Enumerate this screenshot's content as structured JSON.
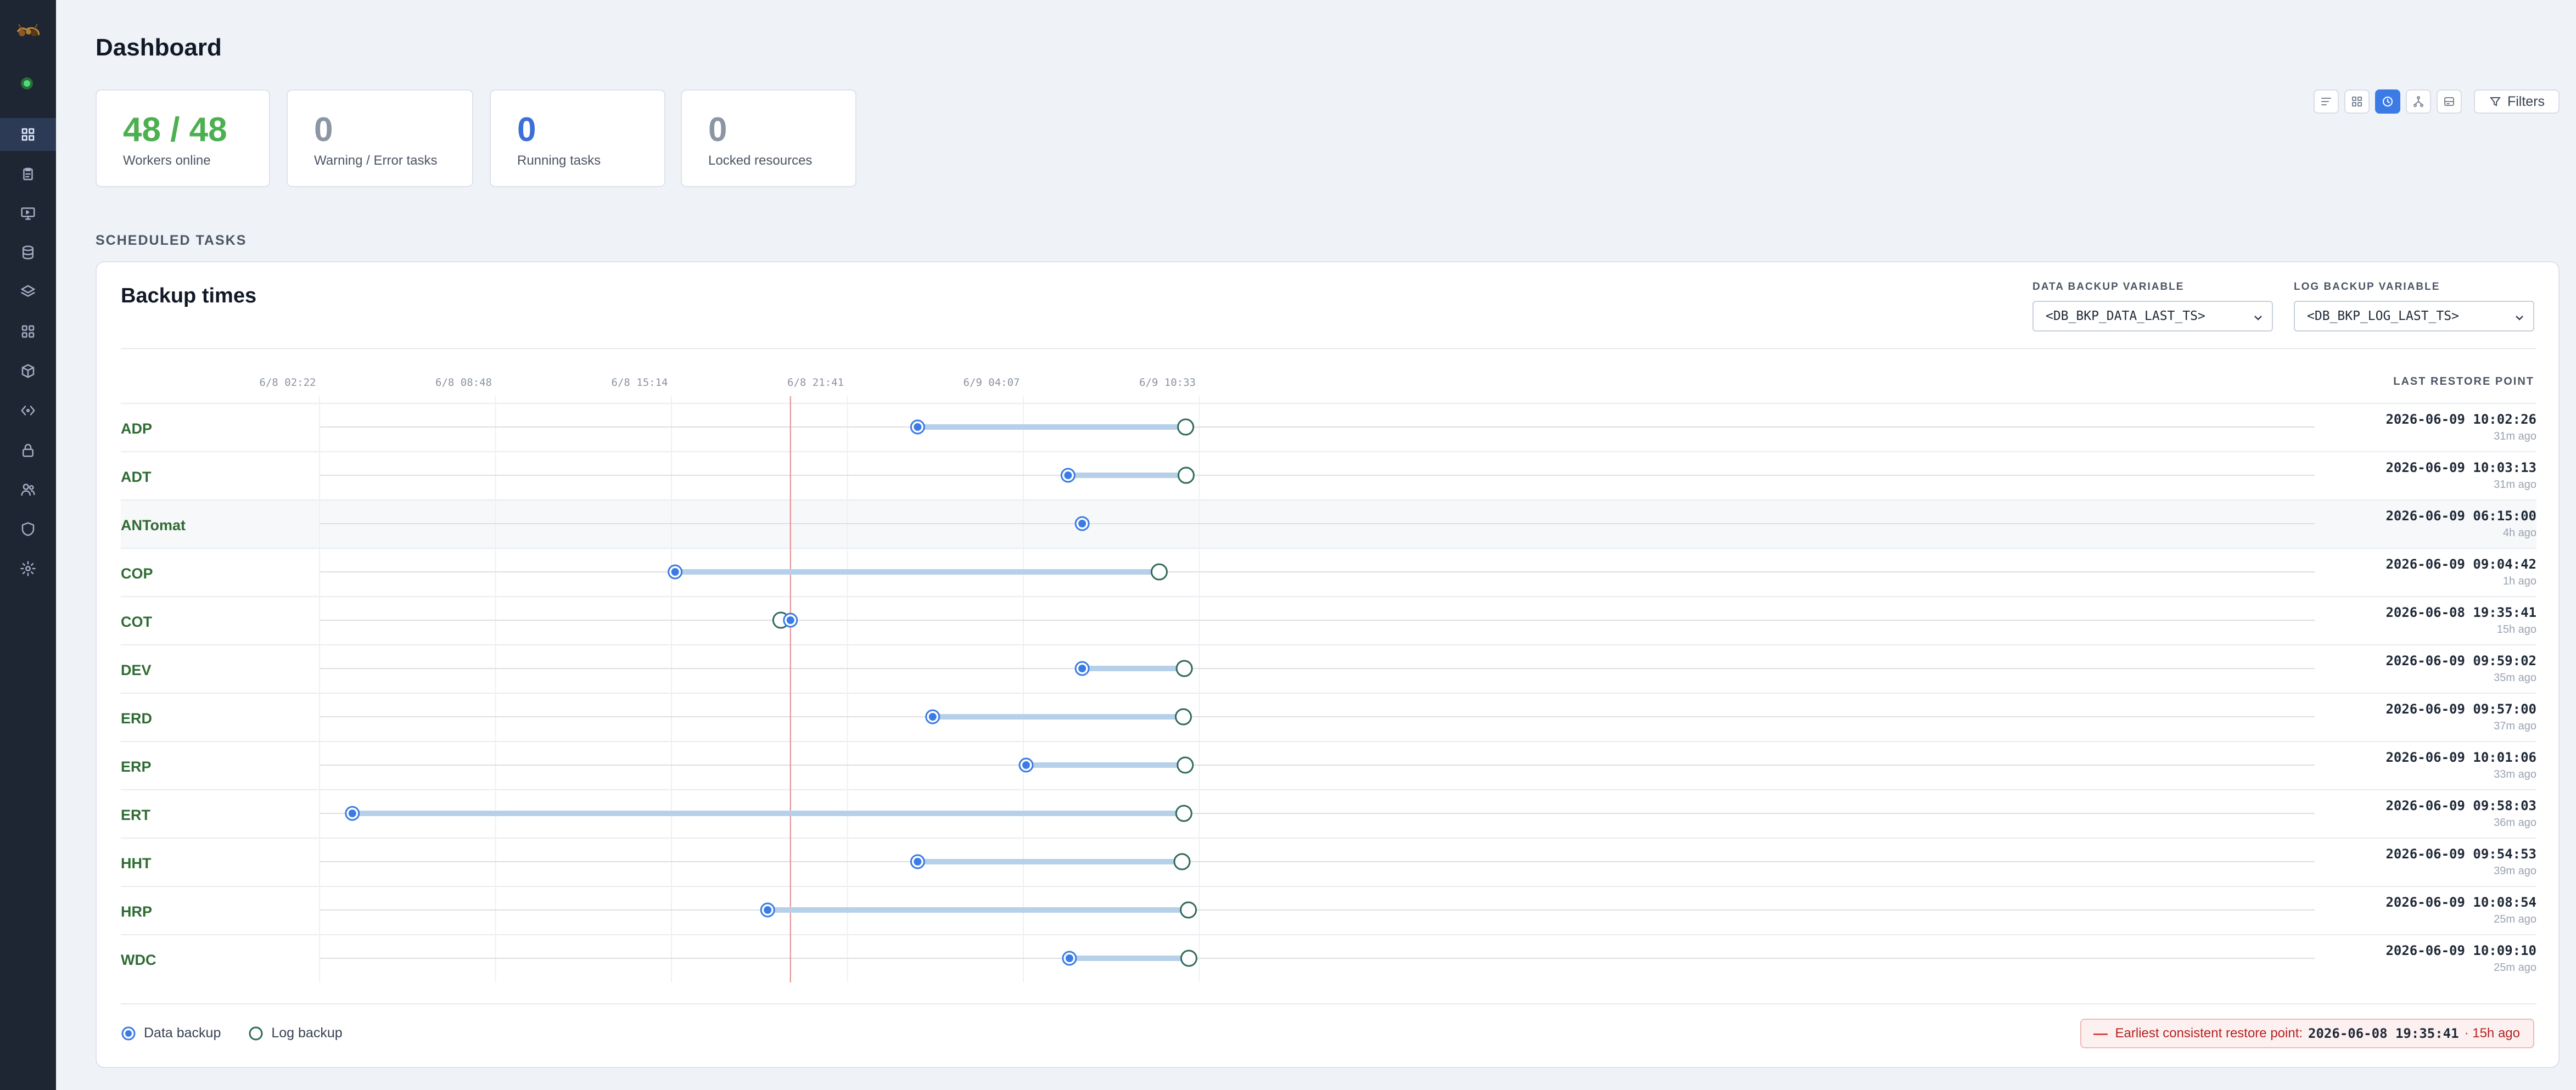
{
  "page": {
    "title": "Dashboard"
  },
  "sidebar": {
    "items": [
      {
        "name": "sidebar-item-dashboard",
        "icon": "grid-icon",
        "active": true
      },
      {
        "name": "sidebar-item-tasks",
        "icon": "clipboard-icon"
      },
      {
        "name": "sidebar-item-monitor",
        "icon": "monitor-icon"
      },
      {
        "name": "sidebar-item-database",
        "icon": "database-icon"
      },
      {
        "name": "sidebar-item-layers",
        "icon": "layers-icon"
      },
      {
        "name": "sidebar-item-apps",
        "icon": "apps-icon"
      },
      {
        "name": "sidebar-item-packages",
        "icon": "package-icon"
      },
      {
        "name": "sidebar-item-variables",
        "icon": "code-icon"
      },
      {
        "name": "sidebar-item-locks",
        "icon": "lock-icon"
      },
      {
        "name": "sidebar-item-users",
        "icon": "users-icon"
      },
      {
        "name": "sidebar-item-security",
        "icon": "shield-icon"
      },
      {
        "name": "sidebar-item-settings",
        "icon": "gear-icon"
      }
    ]
  },
  "stats": [
    {
      "value": "48 / 48",
      "label": "Workers online",
      "color": "#4caf50"
    },
    {
      "value": "0",
      "label": "Warning / Error tasks",
      "color": "#8b95a3"
    },
    {
      "value": "0",
      "label": "Running tasks",
      "color": "#3b6fd9"
    },
    {
      "value": "0",
      "label": "Locked resources",
      "color": "#8b95a3"
    }
  ],
  "toolbar": {
    "filters_label": "Filters",
    "active_view": "restore-points"
  },
  "scheduled": {
    "section_label": "SCHEDULED TASKS",
    "panel_title": "Backup times",
    "data_var": {
      "label": "DATA BACKUP VARIABLE",
      "value": "<DB_BKP_DATA_LAST_TS>"
    },
    "log_var": {
      "label": "LOG BACKUP VARIABLE",
      "value": "<DB_BKP_LOG_LAST_TS>"
    },
    "last_restore_header": "LAST RESTORE POINT",
    "legend": {
      "data": "Data backup",
      "log": "Log backup"
    },
    "earliest": {
      "label": "Earliest consistent restore point:",
      "timestamp": "2026-06-08 19:35:41",
      "ago": "· 15h ago"
    }
  },
  "chart_data": {
    "type": "scatter",
    "x_axis": {
      "ticks": [
        "6/8 02:22",
        "6/8 08:48",
        "6/8 15:14",
        "6/8 21:41",
        "6/9 04:07",
        "6/9 10:33"
      ]
    },
    "earliest_marker": "2026-06-08 19:35:41",
    "colors": {
      "data": "#3b7be5",
      "log": "#2f6b5a",
      "bar": "#b7d0ea"
    },
    "rows": [
      {
        "system": "ADP",
        "data_backup": "2026-06-09 00:14",
        "log_backup": "2026-06-09 10:02",
        "last_restore": "2026-06-09 10:02:26",
        "ago": "31m ago"
      },
      {
        "system": "ADT",
        "data_backup": "2026-06-09 05:44",
        "log_backup": "2026-06-09 10:03",
        "last_restore": "2026-06-09 10:03:13",
        "ago": "31m ago"
      },
      {
        "system": "ANTomat",
        "data_backup": "2026-06-09 06:15",
        "log_backup": null,
        "last_restore": "2026-06-09 06:15:00",
        "ago": "4h ago"
      },
      {
        "system": "COP",
        "data_backup": "2026-06-08 15:22",
        "log_backup": "2026-06-09 09:04",
        "last_restore": "2026-06-09 09:04:42",
        "ago": "1h ago"
      },
      {
        "system": "COT",
        "data_backup": "2026-06-08 19:35",
        "log_backup": "2026-06-08 19:14",
        "last_restore": "2026-06-08 19:35:41",
        "ago": "15h ago"
      },
      {
        "system": "DEV",
        "data_backup": "2026-06-09 06:15",
        "log_backup": "2026-06-09 09:59",
        "last_restore": "2026-06-09 09:59:02",
        "ago": "35m ago"
      },
      {
        "system": "ERD",
        "data_backup": "2026-06-09 00:47",
        "log_backup": "2026-06-09 09:57",
        "last_restore": "2026-06-09 09:57:00",
        "ago": "37m ago"
      },
      {
        "system": "ERP",
        "data_backup": "2026-06-09 04:12",
        "log_backup": "2026-06-09 10:01",
        "last_restore": "2026-06-09 10:01:06",
        "ago": "33m ago"
      },
      {
        "system": "ERT",
        "data_backup": "2026-06-08 03:34",
        "log_backup": "2026-06-09 09:58",
        "last_restore": "2026-06-09 09:58:03",
        "ago": "36m ago"
      },
      {
        "system": "HHT",
        "data_backup": "2026-06-09 00:14",
        "log_backup": "2026-06-09 09:54",
        "last_restore": "2026-06-09 09:54:53",
        "ago": "39m ago"
      },
      {
        "system": "HRP",
        "data_backup": "2026-06-08 18:45",
        "log_backup": "2026-06-09 10:08",
        "last_restore": "2026-06-09 10:08:54",
        "ago": "25m ago"
      },
      {
        "system": "WDC",
        "data_backup": "2026-06-09 05:47",
        "log_backup": "2026-06-09 10:09",
        "last_restore": "2026-06-09 10:09:10",
        "ago": "25m ago"
      }
    ]
  }
}
